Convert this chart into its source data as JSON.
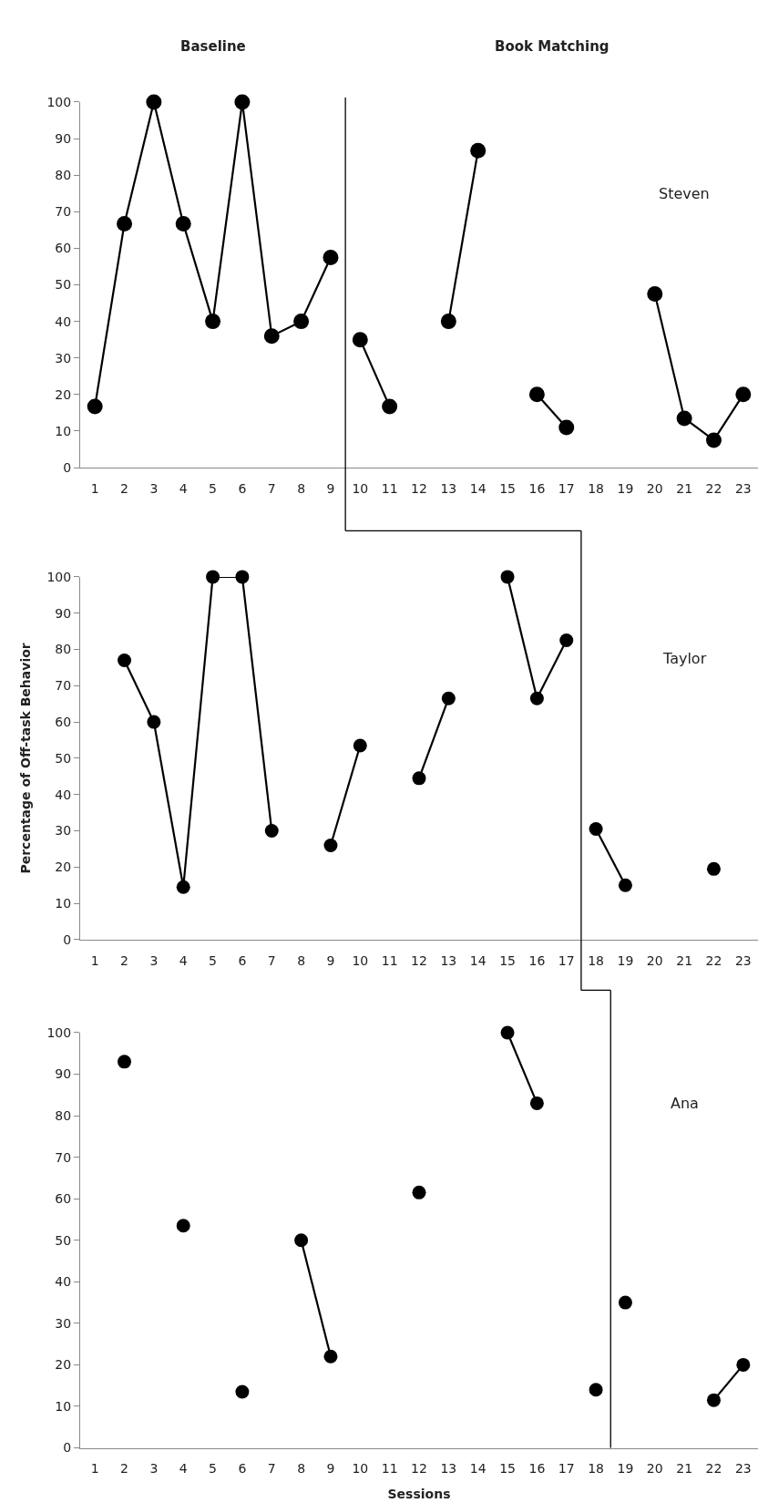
{
  "chart_data": [
    {
      "type": "line",
      "annotations": [
        "Baseline",
        "Book Matching",
        "Steven"
      ],
      "series": [
        {
          "color": "#000000",
          "x": [
            1,
            2,
            3,
            4,
            5,
            6,
            7,
            8,
            9
          ],
          "values": [
            16.7,
            66.7,
            100,
            66.7,
            40,
            100,
            36,
            40,
            57.5
          ]
        },
        {
          "color": "#000000",
          "x": [
            10,
            11,
            12,
            13,
            14,
            15,
            16,
            17,
            18,
            19,
            20,
            21,
            22,
            23
          ],
          "values": [
            35,
            16.7,
            null,
            40,
            86.7,
            null,
            20,
            11,
            null,
            null,
            47.5,
            13.5,
            7.5,
            20
          ]
        }
      ],
      "xlim": [
        0.5,
        23.5
      ],
      "xticks": [
        1,
        2,
        3,
        4,
        5,
        6,
        7,
        8,
        9,
        10,
        11,
        12,
        13,
        14,
        15,
        16,
        17,
        18,
        19,
        20,
        21,
        22,
        23
      ],
      "ylim": [
        0,
        100
      ],
      "yticks": [
        0,
        10,
        20,
        30,
        40,
        50,
        60,
        70,
        80,
        90,
        100
      ],
      "ref_lines": [
        {
          "axis": "x",
          "value": 9.5,
          "color": "#000000"
        }
      ],
      "marker": "circle",
      "line_style": "solid"
    },
    {
      "type": "line",
      "annotations": [
        "Taylor"
      ],
      "ylabel": "Percentage of Off-task Behavior",
      "series": [
        {
          "color": "#000000",
          "x": [
            2,
            3,
            4,
            5,
            6,
            7,
            8,
            9,
            10,
            11,
            12,
            13,
            14,
            15,
            16,
            17
          ],
          "values": [
            77,
            60,
            14.5,
            100,
            100,
            30,
            null,
            26,
            53.5,
            null,
            44.5,
            66.5,
            null,
            100,
            66.5,
            82.5
          ]
        },
        {
          "color": "#000000",
          "x": [
            18,
            19,
            20,
            21,
            22
          ],
          "values": [
            30.5,
            15,
            null,
            null,
            19.5
          ]
        }
      ],
      "xlim": [
        0.5,
        23.5
      ],
      "xticks": [
        1,
        2,
        3,
        4,
        5,
        6,
        7,
        8,
        9,
        10,
        11,
        12,
        13,
        14,
        15,
        16,
        17,
        18,
        19,
        20,
        21,
        22,
        23
      ],
      "ylim": [
        0,
        100
      ],
      "yticks": [
        0,
        10,
        20,
        30,
        40,
        50,
        60,
        70,
        80,
        90,
        100
      ],
      "ref_lines": [
        {
          "axis": "x",
          "value": 17.5,
          "color": "#000000"
        }
      ],
      "marker": "circle",
      "line_style": "solid"
    },
    {
      "type": "line",
      "annotations": [
        "Ana"
      ],
      "xlabel": "Sessions",
      "series": [
        {
          "color": "#000000",
          "x": [
            2,
            3,
            4,
            5,
            6,
            7,
            8,
            9,
            10,
            11,
            12,
            13,
            14,
            15,
            16,
            17,
            18
          ],
          "values": [
            93,
            null,
            53.5,
            null,
            13.5,
            null,
            50,
            22,
            null,
            null,
            61.5,
            null,
            null,
            100,
            83,
            null,
            14
          ]
        },
        {
          "color": "#000000",
          "x": [
            19,
            20,
            21,
            22,
            23
          ],
          "values": [
            35,
            null,
            null,
            11.5,
            20
          ]
        }
      ],
      "xlim": [
        0.5,
        23.5
      ],
      "xticks": [
        1,
        2,
        3,
        4,
        5,
        6,
        7,
        8,
        9,
        10,
        11,
        12,
        13,
        14,
        15,
        16,
        17,
        18,
        19,
        20,
        21,
        22,
        23
      ],
      "ylim": [
        0,
        100
      ],
      "yticks": [
        0,
        10,
        20,
        30,
        40,
        50,
        60,
        70,
        80,
        90,
        100
      ],
      "ref_lines": [
        {
          "axis": "x",
          "value": 18.5,
          "color": "#000000"
        }
      ],
      "marker": "circle",
      "line_style": "solid"
    }
  ]
}
